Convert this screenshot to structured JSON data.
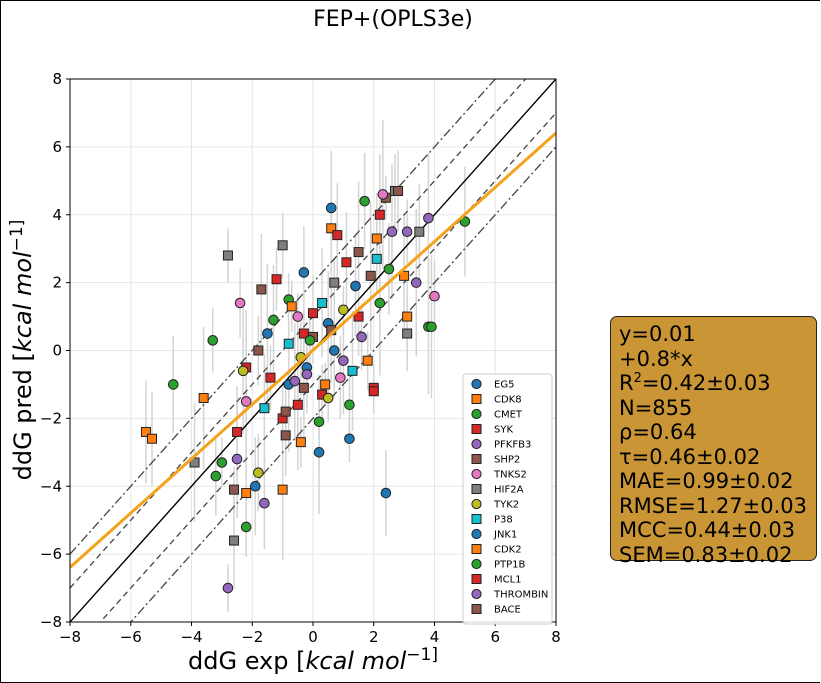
{
  "chart_data": {
    "type": "scatter",
    "title": "FEP+(OPLS3e)",
    "xlabel_text": "ddG exp [",
    "xlabel_math": "kcal mol",
    "xlabel_tail": "−1]",
    "ylabel_text": "ddG pred [",
    "ylabel_math": "kcal mol",
    "ylabel_tail": "−1]",
    "xlim": [
      -8,
      8
    ],
    "ylim": [
      -8,
      8
    ],
    "xticks": [
      "−8",
      "−6",
      "−4",
      "−2",
      "0",
      "2",
      "4",
      "6",
      "8"
    ],
    "yticks": [
      "−8",
      "−6",
      "−4",
      "−2",
      "0",
      "2",
      "4",
      "6",
      "8"
    ],
    "grid": true,
    "legend_position": "lower-right",
    "reference_lines": {
      "identity_slope": 1,
      "dashed_offset": 1,
      "dashdot_offset": 2
    },
    "fit_line": {
      "intercept": 0.01,
      "slope": 0.8,
      "color": "#f5a21b"
    },
    "series": [
      {
        "name": "EG5",
        "marker": "circle",
        "color": "#1f77b4",
        "points": [
          [
            0.6,
            4.2
          ],
          [
            -1.5,
            0.5
          ],
          [
            1.2,
            -2.6
          ],
          [
            0.5,
            0.8
          ],
          [
            -0.8,
            -1.0
          ],
          [
            2.4,
            -4.2
          ],
          [
            -0.3,
            2.3
          ],
          [
            0.2,
            -3.0
          ]
        ]
      },
      {
        "name": "CDK8",
        "marker": "square",
        "color": "#ff7f0e",
        "points": [
          [
            -5.5,
            -2.4
          ],
          [
            -5.3,
            -2.6
          ],
          [
            -3.6,
            -1.4
          ],
          [
            0.6,
            3.6
          ],
          [
            2.1,
            3.3
          ],
          [
            3.1,
            1.0
          ],
          [
            -2.2,
            -4.2
          ],
          [
            1.8,
            -0.3
          ],
          [
            -0.4,
            -2.7
          ]
        ]
      },
      {
        "name": "CMET",
        "marker": "circle",
        "color": "#2ca02c",
        "points": [
          [
            5.0,
            3.8
          ],
          [
            -4.6,
            -1.0
          ],
          [
            -3.2,
            -3.7
          ],
          [
            -2.2,
            -5.2
          ],
          [
            1.7,
            4.4
          ],
          [
            3.8,
            0.7
          ],
          [
            -3.3,
            0.3
          ],
          [
            -0.8,
            1.5
          ],
          [
            1.2,
            -1.6
          ],
          [
            2.5,
            2.4
          ]
        ]
      },
      {
        "name": "SYK",
        "marker": "square",
        "color": "#d62728",
        "points": [
          [
            2.2,
            4.0
          ],
          [
            -1.2,
            2.1
          ],
          [
            2.0,
            -1.1
          ],
          [
            -0.3,
            0.5
          ],
          [
            0.8,
            3.4
          ],
          [
            -2.2,
            -0.5
          ],
          [
            1.5,
            1.0
          ],
          [
            -1.0,
            -2.0
          ],
          [
            0.3,
            -1.3
          ]
        ]
      },
      {
        "name": "PFKFB3",
        "marker": "circle",
        "color": "#9467bd",
        "points": [
          [
            3.8,
            3.9
          ],
          [
            -2.8,
            -7.0
          ],
          [
            -1.6,
            -4.5
          ],
          [
            2.6,
            3.5
          ],
          [
            1.0,
            -0.3
          ],
          [
            -0.6,
            -0.9
          ],
          [
            3.4,
            2.0
          ]
        ]
      },
      {
        "name": "SHP2",
        "marker": "square",
        "color": "#8c564b",
        "points": [
          [
            2.4,
            4.5
          ],
          [
            -1.7,
            1.8
          ],
          [
            -2.6,
            -4.1
          ],
          [
            1.5,
            2.9
          ],
          [
            0.0,
            0.4
          ],
          [
            -0.9,
            -1.8
          ]
        ]
      },
      {
        "name": "TNKS2",
        "marker": "circle",
        "color": "#e377c2",
        "points": [
          [
            4.0,
            1.6
          ],
          [
            -2.4,
            1.4
          ],
          [
            2.3,
            4.6
          ],
          [
            -0.5,
            1.0
          ],
          [
            0.9,
            -0.8
          ],
          [
            -2.2,
            -1.5
          ]
        ]
      },
      {
        "name": "HIF2A",
        "marker": "square",
        "color": "#7f7f7f",
        "points": [
          [
            -2.8,
            2.8
          ],
          [
            -3.9,
            -3.3
          ],
          [
            -2.6,
            -5.6
          ],
          [
            3.5,
            3.5
          ],
          [
            2.7,
            4.7
          ],
          [
            3.1,
            0.5
          ],
          [
            -1.0,
            3.1
          ],
          [
            0.7,
            2.0
          ]
        ]
      },
      {
        "name": "TYK2",
        "marker": "circle",
        "color": "#bcbd22",
        "points": [
          [
            -1.8,
            -3.6
          ],
          [
            -2.3,
            -0.6
          ],
          [
            1.0,
            1.2
          ],
          [
            -0.4,
            -0.2
          ],
          [
            0.5,
            -1.4
          ]
        ]
      },
      {
        "name": "P38",
        "marker": "square",
        "color": "#17becf",
        "points": [
          [
            2.1,
            2.7
          ],
          [
            -1.6,
            -1.7
          ],
          [
            0.3,
            1.4
          ],
          [
            -0.8,
            0.2
          ],
          [
            1.3,
            -0.6
          ]
        ]
      },
      {
        "name": "JNK1",
        "marker": "circle",
        "color": "#1f77b4",
        "points": [
          [
            -1.9,
            -4.0
          ],
          [
            1.4,
            1.9
          ],
          [
            -0.2,
            -0.5
          ],
          [
            0.7,
            0.0
          ]
        ]
      },
      {
        "name": "CDK2",
        "marker": "square",
        "color": "#ff7f0e",
        "points": [
          [
            -1.0,
            -4.1
          ],
          [
            3.0,
            2.2
          ],
          [
            -0.7,
            1.3
          ],
          [
            0.4,
            -1.0
          ]
        ]
      },
      {
        "name": "PTP1B",
        "marker": "circle",
        "color": "#2ca02c",
        "points": [
          [
            3.9,
            0.7
          ],
          [
            -3.0,
            -3.3
          ],
          [
            2.2,
            1.4
          ],
          [
            -1.3,
            0.9
          ],
          [
            0.2,
            -2.1
          ],
          [
            -0.1,
            0.3
          ]
        ]
      },
      {
        "name": "MCL1",
        "marker": "square",
        "color": "#d62728",
        "points": [
          [
            -2.5,
            -2.4
          ],
          [
            2.0,
            -1.2
          ],
          [
            1.1,
            2.6
          ],
          [
            -1.4,
            -0.8
          ],
          [
            0.0,
            1.1
          ],
          [
            -0.5,
            -1.6
          ]
        ]
      },
      {
        "name": "THROMBIN",
        "marker": "circle",
        "color": "#9467bd",
        "points": [
          [
            3.1,
            3.5
          ],
          [
            -2.5,
            -3.2
          ],
          [
            1.6,
            0.4
          ],
          [
            -0.2,
            -0.7
          ]
        ]
      },
      {
        "name": "BACE",
        "marker": "square",
        "color": "#8c564b",
        "points": [
          [
            2.8,
            4.7
          ],
          [
            -0.9,
            -2.5
          ],
          [
            1.9,
            2.2
          ],
          [
            -1.8,
            0.0
          ],
          [
            0.6,
            0.6
          ],
          [
            -0.3,
            -1.1
          ]
        ]
      }
    ]
  },
  "stats": {
    "line1": "y=0.01",
    "line2": " +0.8*x",
    "r2_label": "R",
    "r2_sup": "2",
    "r2_value": "=0.42±0.03",
    "n": "N=855",
    "rho": "ρ=0.64",
    "tau": "τ=0.46±0.02",
    "mae": "MAE=0.99±0.02",
    "rmse": "RMSE=1.27±0.03",
    "mcc": "MCC=0.44±0.03",
    "sem": "SEM=0.83±0.02"
  }
}
